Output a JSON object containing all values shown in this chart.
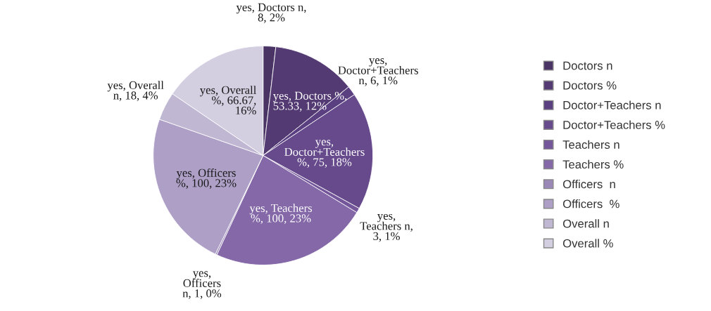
{
  "chart_data": {
    "type": "pie",
    "categories": [
      "Doctors n",
      "Doctors %",
      "Doctor+Teachers n",
      "Doctor+Teachers %",
      "Teachers n",
      "Teachers %",
      "Officers  n",
      "Officers  %",
      "Overall n",
      "Overall %"
    ],
    "values": [
      8,
      53.33,
      6,
      75,
      3,
      100,
      1,
      100,
      18,
      66.67
    ],
    "colors": [
      "#4a3466",
      "#533a73",
      "#5a4080",
      "#664a8c",
      "#74569a",
      "#8468a8",
      "#9a88b6",
      "#ad9fc6",
      "#c0b7d2",
      "#d4cee1"
    ],
    "value_labels": [
      "yes, Doctors n,\n8, 2%",
      "yes, Doctors %,\n53.33, 12%",
      "yes,\nDoctor+Teachers\nn, 6, 1%",
      "yes,\nDoctor+Teachers\n%, 75, 18%",
      "yes,\nTeachers n,\n3, 1%",
      "yes, Teachers\n%, 100, 23%",
      "yes,\nOfficers\nn, 1, 0%",
      "yes, Officers\n%, 100, 23%",
      "yes, Overall\nn, 18, 4%",
      "yes, Overall\n%, 66.67,\n16%"
    ],
    "legend": "right"
  }
}
